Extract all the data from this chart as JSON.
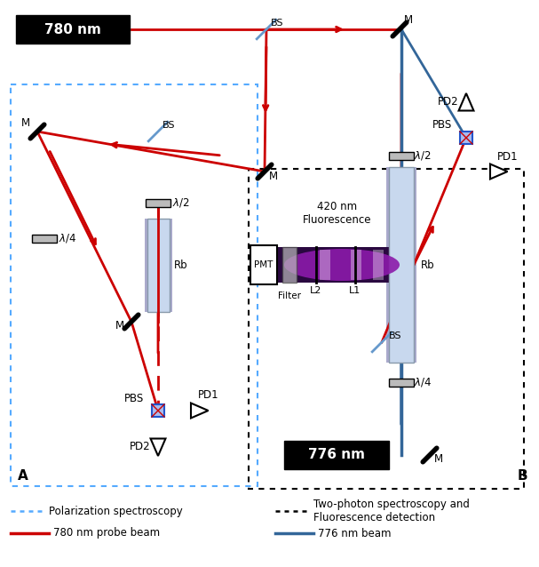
{
  "fig_width": 6.07,
  "fig_height": 6.38,
  "dpi": 100,
  "bg_color": "#ffffff",
  "red_color": "#cc0000",
  "blue776_color": "#336699",
  "light_blue_edge": "#55aaff",
  "black_color": "#000000",
  "title_780nm": "780 nm",
  "title_776nm": "776 nm",
  "legend_pol": "Polarization spectroscopy",
  "legend_two": "Two-photon spectroscopy and\nFluorescence detection",
  "legend_780": "780 nm probe beam",
  "legend_776": "776 nm beam",
  "annot_420": "420 nm\nFluorescence",
  "label_A": "A",
  "label_B": "B"
}
